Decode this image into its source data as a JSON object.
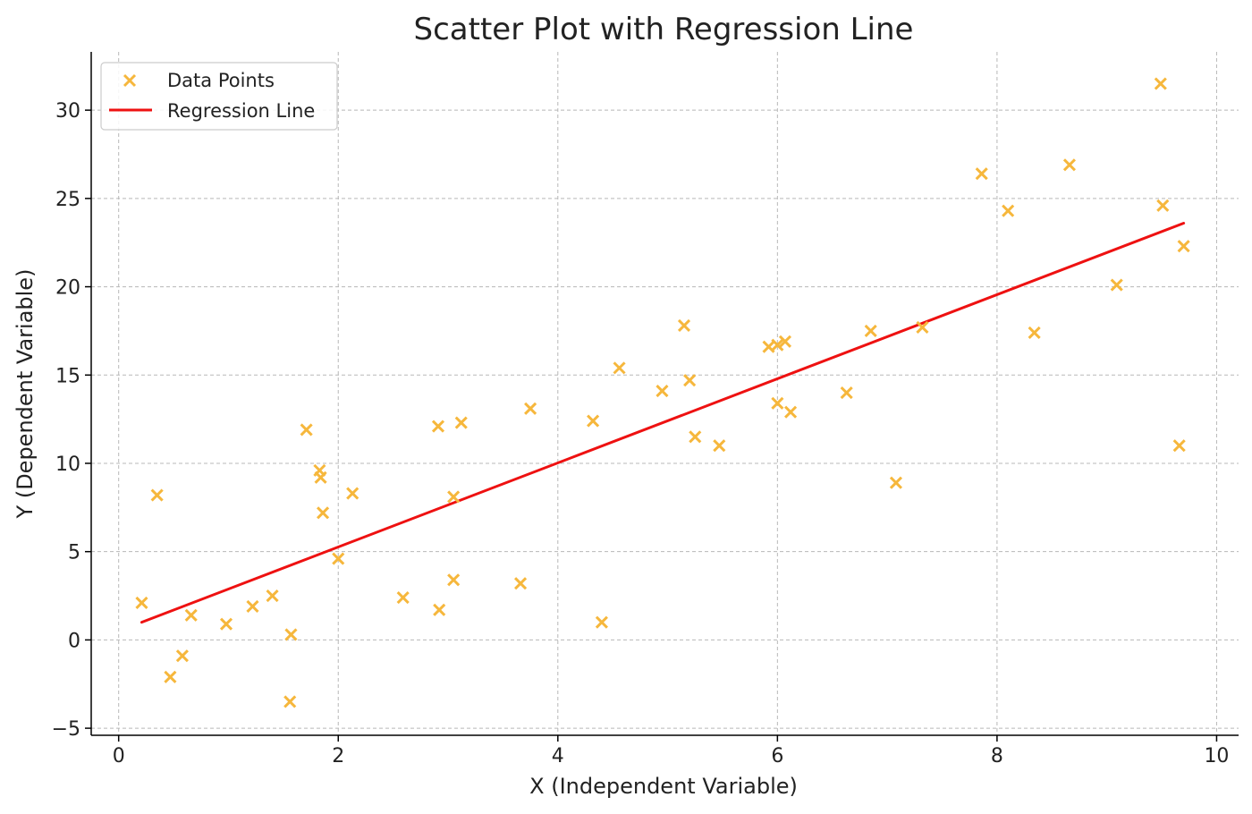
{
  "chart_data": {
    "type": "scatter",
    "title": "Scatter Plot with Regression Line",
    "xlabel": "X (Independent Variable)",
    "ylabel": "Y (Dependent Variable)",
    "xlim": [
      -0.25,
      10.2
    ],
    "ylim": [
      -5.4,
      33.3
    ],
    "x_ticks": [
      0,
      2,
      4,
      6,
      8,
      10
    ],
    "y_ticks": [
      -5,
      0,
      5,
      10,
      15,
      20,
      25,
      30
    ],
    "x_tick_labels": [
      "0",
      "2",
      "4",
      "6",
      "8",
      "10"
    ],
    "y_tick_labels": [
      "−5",
      "0",
      "5",
      "10",
      "15",
      "20",
      "25",
      "30"
    ],
    "grid": true,
    "legend_position": "top-left",
    "series": [
      {
        "name": "Data Points",
        "kind": "scatter",
        "marker": "x",
        "color": "#f6b73c",
        "points": [
          [
            0.21,
            2.1
          ],
          [
            0.35,
            8.2
          ],
          [
            0.47,
            -2.1
          ],
          [
            0.58,
            -0.9
          ],
          [
            0.66,
            1.4
          ],
          [
            0.98,
            0.9
          ],
          [
            1.22,
            1.9
          ],
          [
            1.4,
            2.5
          ],
          [
            1.56,
            -3.5
          ],
          [
            1.57,
            0.3
          ],
          [
            1.71,
            11.9
          ],
          [
            1.83,
            9.6
          ],
          [
            1.84,
            9.2
          ],
          [
            1.86,
            7.2
          ],
          [
            2.0,
            4.6
          ],
          [
            2.13,
            8.3
          ],
          [
            2.59,
            2.4
          ],
          [
            2.91,
            12.1
          ],
          [
            2.92,
            1.7
          ],
          [
            3.05,
            3.4
          ],
          [
            3.05,
            8.1
          ],
          [
            3.12,
            12.3
          ],
          [
            3.66,
            3.2
          ],
          [
            3.75,
            13.1
          ],
          [
            4.32,
            12.4
          ],
          [
            4.4,
            1.0
          ],
          [
            4.56,
            15.4
          ],
          [
            4.95,
            14.1
          ],
          [
            5.15,
            17.8
          ],
          [
            5.2,
            14.7
          ],
          [
            5.25,
            11.5
          ],
          [
            5.47,
            11.0
          ],
          [
            5.92,
            16.6
          ],
          [
            6.0,
            13.4
          ],
          [
            6.0,
            16.7
          ],
          [
            6.07,
            16.9
          ],
          [
            6.12,
            12.9
          ],
          [
            6.63,
            14.0
          ],
          [
            6.85,
            17.5
          ],
          [
            7.08,
            8.9
          ],
          [
            7.32,
            17.7
          ],
          [
            7.86,
            26.4
          ],
          [
            8.1,
            24.3
          ],
          [
            8.34,
            17.4
          ],
          [
            8.66,
            26.9
          ],
          [
            9.09,
            20.1
          ],
          [
            9.49,
            31.5
          ],
          [
            9.51,
            24.6
          ],
          [
            9.66,
            11.0
          ],
          [
            9.7,
            22.3
          ]
        ]
      },
      {
        "name": "Regression Line",
        "kind": "line",
        "color": "#ee1111",
        "points": [
          [
            0.21,
            1.0
          ],
          [
            9.7,
            23.6
          ]
        ]
      }
    ]
  }
}
